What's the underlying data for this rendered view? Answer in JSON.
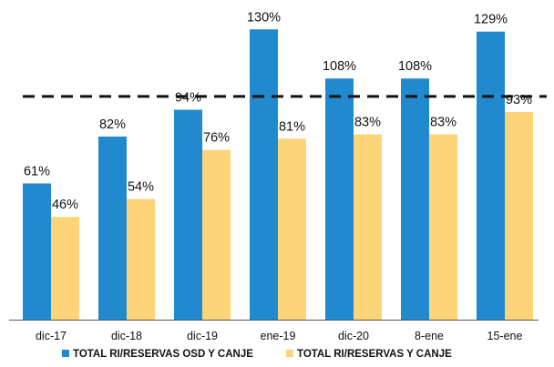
{
  "chart_data": {
    "type": "bar",
    "categories": [
      "dic-17",
      "dic-18",
      "dic-19",
      "ene-19",
      "dic-20",
      "8-ene",
      "15-ene"
    ],
    "series": [
      {
        "name": "TOTAL RI/RESERVAS OSD Y CANJE",
        "values": [
          61,
          82,
          94,
          130,
          108,
          108,
          129
        ],
        "color": "#2189CE"
      },
      {
        "name": "TOTAL RI/RESERVAS Y CANJE",
        "values": [
          46,
          54,
          76,
          81,
          83,
          83,
          93
        ],
        "color": "#FDD578"
      }
    ],
    "value_suffix": "%",
    "reference_line": {
      "value": 100,
      "style": "dashed"
    },
    "ylim": [
      0,
      135
    ],
    "legend_position": "bottom",
    "grid": false,
    "title": "",
    "xlabel": "",
    "ylabel": ""
  }
}
